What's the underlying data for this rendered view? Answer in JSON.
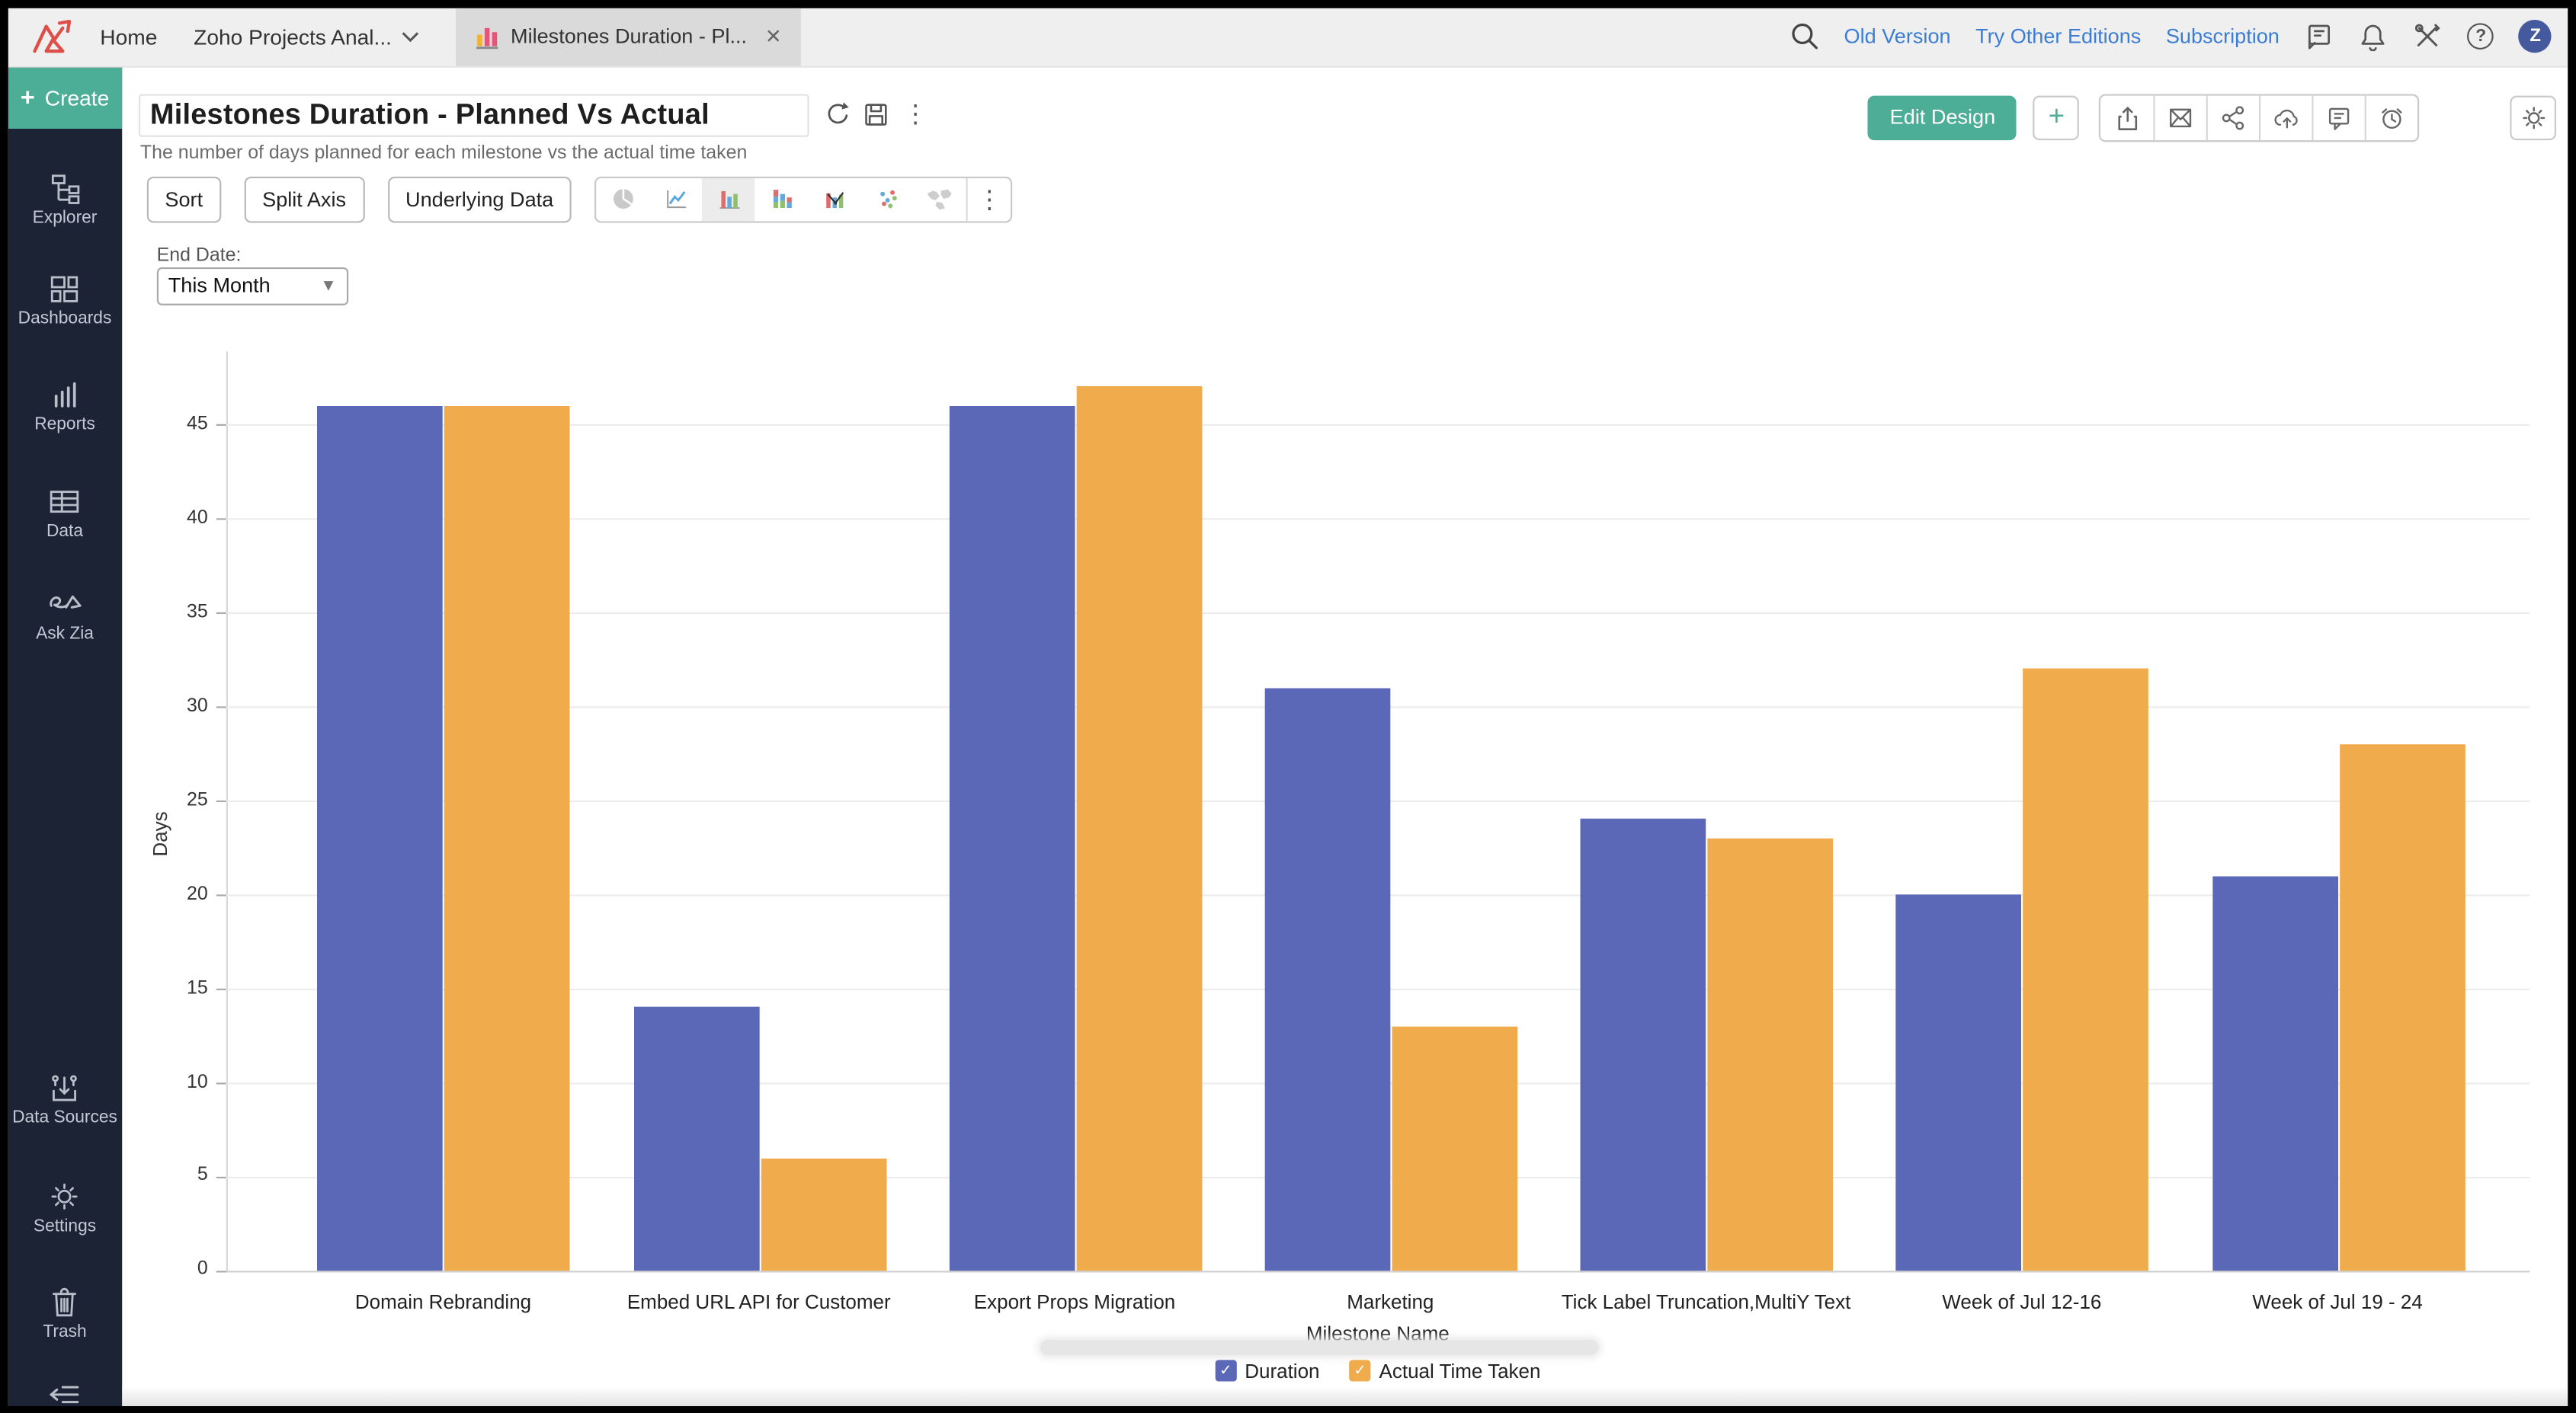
{
  "topbar": {
    "home": "Home",
    "workspace": "Zoho Projects Anal...",
    "tab_title": "Milestones Duration - Pl...",
    "links": [
      "Old Version",
      "Try Other Editions",
      "Subscription"
    ],
    "avatar_initial": "Z"
  },
  "sidebar": {
    "create_label": "Create",
    "items": [
      {
        "label": "Explorer"
      },
      {
        "label": "Dashboards"
      },
      {
        "label": "Reports"
      },
      {
        "label": "Data"
      },
      {
        "label": "Ask Zia"
      }
    ],
    "bottom_items": [
      {
        "label": "Data Sources"
      },
      {
        "label": "Settings"
      },
      {
        "label": "Trash"
      }
    ]
  },
  "header": {
    "title": "Milestones Duration - Planned Vs Actual",
    "subtitle": "The number of days planned for each milestone vs the actual time taken",
    "edit_design_label": "Edit Design"
  },
  "toolbar": {
    "sort_label": "Sort",
    "split_axis_label": "Split Axis",
    "underlying_data_label": "Underlying Data"
  },
  "filter": {
    "label": "End Date:",
    "value": "This Month"
  },
  "icons": {
    "kebab": "⋮",
    "chevron_down": "∨",
    "close": "✕",
    "plus": "+",
    "check": "✓",
    "dropdown_caret": "▼",
    "question": "?"
  },
  "colors": {
    "accent_green": "#4cae97",
    "link_blue": "#3b7dd5",
    "sidebar_bg": "#1c2334",
    "topbar_bg": "#efefef",
    "bar_blue": "#5b68b7",
    "bar_orange": "#f0ab4c"
  },
  "chart_data": {
    "type": "bar",
    "title": "Milestones Duration - Planned Vs Actual",
    "categories": [
      "Domain Rebranding",
      "Embed URL API for Customer",
      "Export Props Migration",
      "Marketing",
      "Tick Label Truncation,MultiY Text",
      "Week of Jul 12-16",
      "Week of Jul 19 - 24"
    ],
    "series": [
      {
        "name": "Duration",
        "color": "#5b68b7",
        "values": [
          46,
          14,
          46,
          31,
          24,
          20,
          21
        ]
      },
      {
        "name": "Actual Time Taken",
        "color": "#f0ab4c",
        "values": [
          46,
          6,
          47,
          13,
          23,
          32,
          28
        ]
      }
    ],
    "xlabel": "Milestone Name",
    "ylabel": "Days",
    "ylim": [
      0,
      48.9
    ],
    "yticks": [
      0,
      5,
      10,
      15,
      20,
      25,
      30,
      35,
      40,
      45
    ],
    "grid": true,
    "legend_position": "bottom"
  }
}
